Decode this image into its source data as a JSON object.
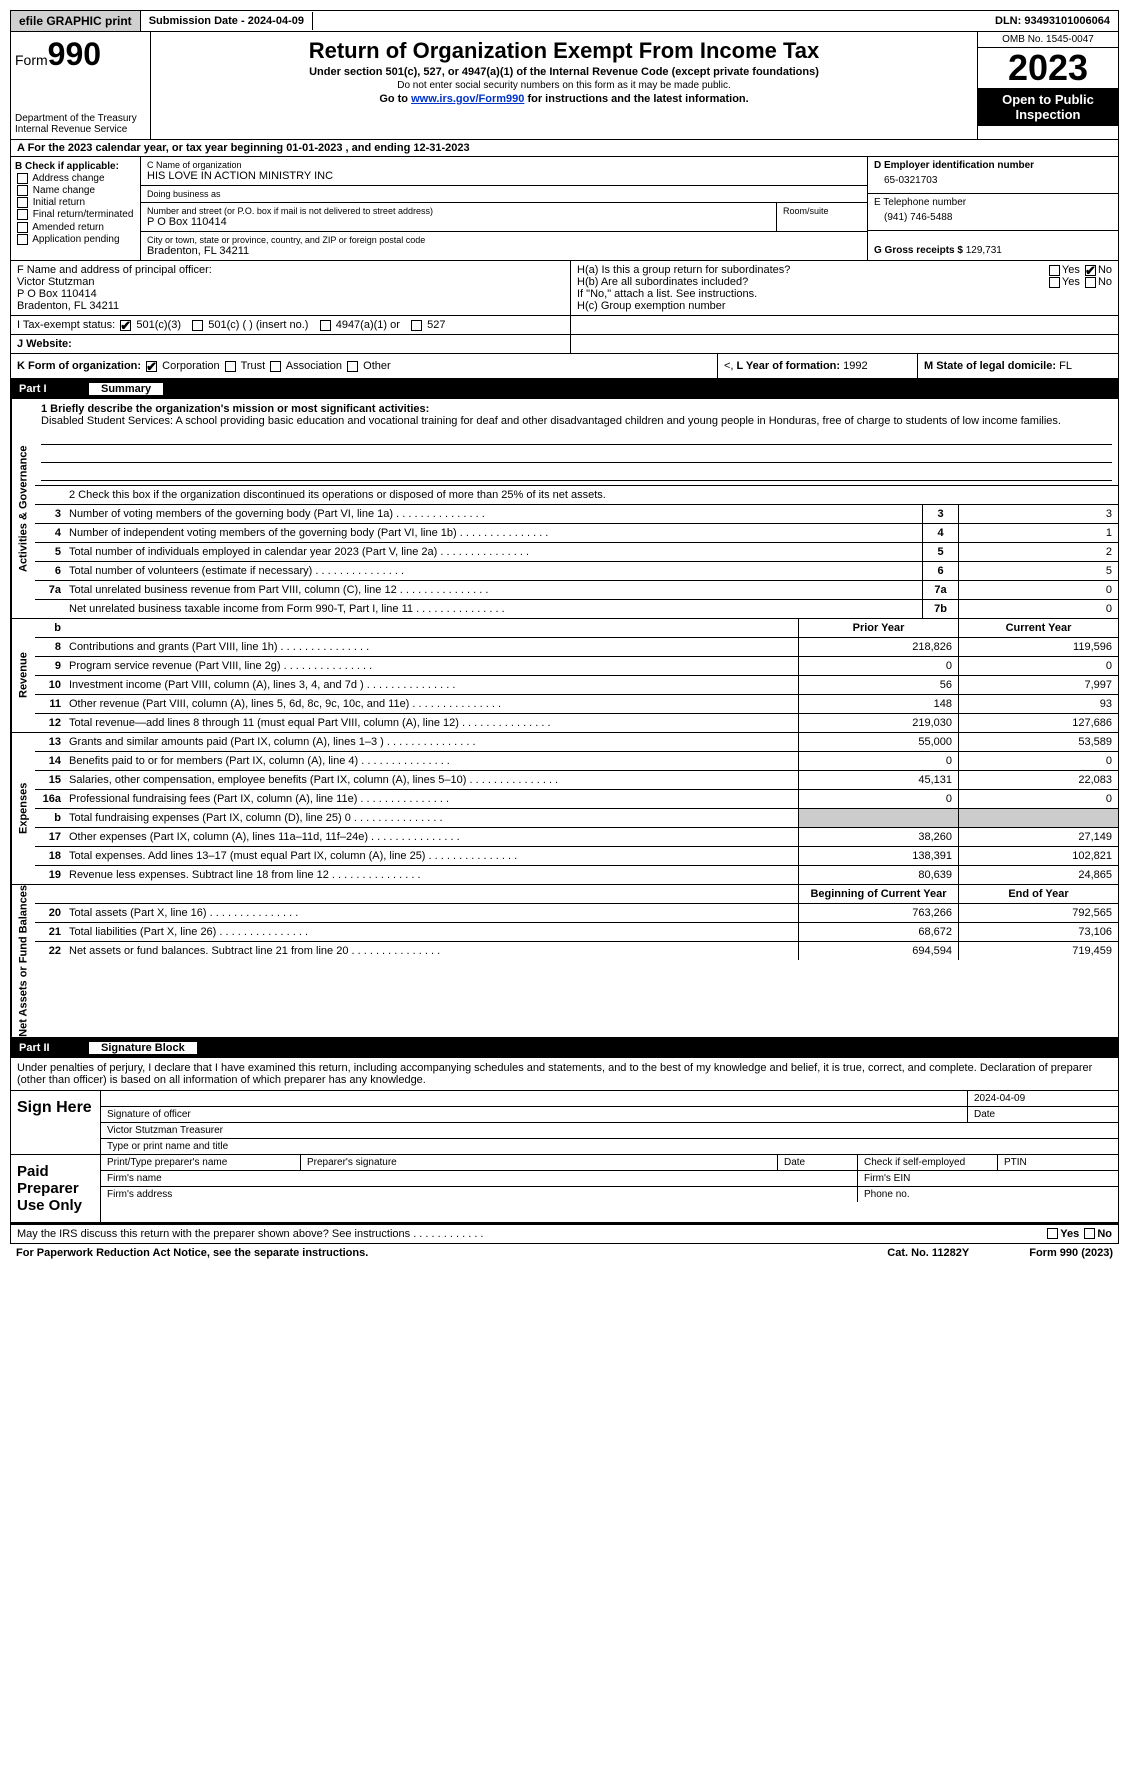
{
  "topbar": {
    "efile": "efile GRAPHIC print",
    "submission": "Submission Date - 2024-04-09",
    "dln": "DLN: 93493101006064"
  },
  "header": {
    "form_label": "Form",
    "form_no": "990",
    "dept": "Department of the Treasury\nInternal Revenue Service",
    "title": "Return of Organization Exempt From Income Tax",
    "sub": "Under section 501(c), 527, or 4947(a)(1) of the Internal Revenue Code (except private foundations)",
    "sub2": "Do not enter social security numbers on this form as it may be made public.",
    "sub3_pre": "Go to ",
    "sub3_link": "www.irs.gov/Form990",
    "sub3_post": " for instructions and the latest information.",
    "omb": "OMB No. 1545-0047",
    "year": "2023",
    "open": "Open to Public Inspection"
  },
  "row_a": "A   For the 2023 calendar year, or tax year beginning 01-01-2023   , and ending 12-31-2023",
  "col_b": {
    "title": "B Check if applicable:",
    "opts": [
      "Address change",
      "Name change",
      "Initial return",
      "Final return/terminated",
      "Amended return",
      "Application pending"
    ]
  },
  "col_c": {
    "name_label": "C Name of organization",
    "name": "HIS LOVE IN ACTION MINISTRY INC",
    "dba_label": "Doing business as",
    "dba": "",
    "street_label": "Number and street (or P.O. box if mail is not delivered to street address)",
    "street": "P O Box 110414",
    "room_label": "Room/suite",
    "city_label": "City or town, state or province, country, and ZIP or foreign postal code",
    "city": "Bradenton, FL  34211"
  },
  "col_d": {
    "ein_label": "D Employer identification number",
    "ein": "65-0321703",
    "phone_label": "E Telephone number",
    "phone": "(941) 746-5488",
    "gross_label": "G Gross receipts $",
    "gross": "129,731"
  },
  "row_f": {
    "label": "F  Name and address of principal officer:",
    "name": "Victor Stutzman",
    "street": "P O Box 110414",
    "city": "Bradenton, FL  34211"
  },
  "row_h": {
    "ha": "H(a)  Is this a group return for subordinates?",
    "hb": "H(b)  Are all subordinates included?",
    "hb_note": "If \"No,\" attach a list. See instructions.",
    "hc": "H(c)  Group exemption number",
    "yes": "Yes",
    "no": "No"
  },
  "row_i": {
    "label": "I   Tax-exempt status:",
    "o1": "501(c)(3)",
    "o2": "501(c) (  ) (insert no.)",
    "o3": "4947(a)(1) or",
    "o4": "527"
  },
  "row_j": {
    "label": "J   Website:",
    "val": ""
  },
  "row_k": {
    "label": "K Form of organization:",
    "o1": "Corporation",
    "o2": "Trust",
    "o3": "Association",
    "o4": "Other"
  },
  "row_l": {
    "label": "L Year of formation:",
    "val": "1992"
  },
  "row_m": {
    "label": "M State of legal domicile:",
    "val": "FL"
  },
  "parts": {
    "p1": "Part I",
    "p1t": "Summary",
    "p2": "Part II",
    "p2t": "Signature Block"
  },
  "summary": {
    "sections": [
      {
        "label": "Activities & Governance"
      },
      {
        "label": "Revenue"
      },
      {
        "label": "Expenses"
      },
      {
        "label": "Net Assets or Fund Balances"
      }
    ],
    "mission_label": "1   Briefly describe the organization's mission or most significant activities:",
    "mission": "Disabled Student Services: A school providing basic education and vocational training for deaf and other disadvantaged children and young people in Honduras, free of charge to students of low income families.",
    "line2": "2   Check this box      if the organization discontinued its operations or disposed of more than 25% of its net assets.",
    "gov_rows": [
      {
        "n": "3",
        "d": "Number of voting members of the governing body (Part VI, line 1a)",
        "k": "3",
        "v": "3"
      },
      {
        "n": "4",
        "d": "Number of independent voting members of the governing body (Part VI, line 1b)",
        "k": "4",
        "v": "1"
      },
      {
        "n": "5",
        "d": "Total number of individuals employed in calendar year 2023 (Part V, line 2a)",
        "k": "5",
        "v": "2"
      },
      {
        "n": "6",
        "d": "Total number of volunteers (estimate if necessary)",
        "k": "6",
        "v": "5"
      },
      {
        "n": "7a",
        "d": "Total unrelated business revenue from Part VIII, column (C), line 12",
        "k": "7a",
        "v": "0"
      },
      {
        "n": "",
        "d": "Net unrelated business taxable income from Form 990-T, Part I, line 11",
        "k": "7b",
        "v": "0"
      }
    ],
    "col_hdr_b": "b",
    "col_hdr_prior": "Prior Year",
    "col_hdr_current": "Current Year",
    "rev_rows": [
      {
        "n": "8",
        "d": "Contributions and grants (Part VIII, line 1h)",
        "p": "218,826",
        "c": "119,596"
      },
      {
        "n": "9",
        "d": "Program service revenue (Part VIII, line 2g)",
        "p": "0",
        "c": "0"
      },
      {
        "n": "10",
        "d": "Investment income (Part VIII, column (A), lines 3, 4, and 7d )",
        "p": "56",
        "c": "7,997"
      },
      {
        "n": "11",
        "d": "Other revenue (Part VIII, column (A), lines 5, 6d, 8c, 9c, 10c, and 11e)",
        "p": "148",
        "c": "93"
      },
      {
        "n": "12",
        "d": "Total revenue—add lines 8 through 11 (must equal Part VIII, column (A), line 12)",
        "p": "219,030",
        "c": "127,686"
      }
    ],
    "exp_rows": [
      {
        "n": "13",
        "d": "Grants and similar amounts paid (Part IX, column (A), lines 1–3 )",
        "p": "55,000",
        "c": "53,589"
      },
      {
        "n": "14",
        "d": "Benefits paid to or for members (Part IX, column (A), line 4)",
        "p": "0",
        "c": "0"
      },
      {
        "n": "15",
        "d": "Salaries, other compensation, employee benefits (Part IX, column (A), lines 5–10)",
        "p": "45,131",
        "c": "22,083"
      },
      {
        "n": "16a",
        "d": "Professional fundraising fees (Part IX, column (A), line 11e)",
        "p": "0",
        "c": "0"
      },
      {
        "n": "b",
        "d": "Total fundraising expenses (Part IX, column (D), line 25) 0",
        "p": "",
        "c": "",
        "grey": true
      },
      {
        "n": "17",
        "d": "Other expenses (Part IX, column (A), lines 11a–11d, 11f–24e)",
        "p": "38,260",
        "c": "27,149"
      },
      {
        "n": "18",
        "d": "Total expenses. Add lines 13–17 (must equal Part IX, column (A), line 25)",
        "p": "138,391",
        "c": "102,821"
      },
      {
        "n": "19",
        "d": "Revenue less expenses. Subtract line 18 from line 12",
        "p": "80,639",
        "c": "24,865"
      }
    ],
    "na_hdr_beg": "Beginning of Current Year",
    "na_hdr_end": "End of Year",
    "na_rows": [
      {
        "n": "20",
        "d": "Total assets (Part X, line 16)",
        "p": "763,266",
        "c": "792,565"
      },
      {
        "n": "21",
        "d": "Total liabilities (Part X, line 26)",
        "p": "68,672",
        "c": "73,106"
      },
      {
        "n": "22",
        "d": "Net assets or fund balances. Subtract line 21 from line 20",
        "p": "694,594",
        "c": "719,459"
      }
    ]
  },
  "signature": {
    "decl": "Under penalties of perjury, I declare that I have examined this return, including accompanying schedules and statements, and to the best of my knowledge and belief, it is true, correct, and complete. Declaration of preparer (other than officer) is based on all information of which preparer has any knowledge.",
    "sign_here": "Sign Here",
    "date": "2024-04-09",
    "sig_officer_lbl": "Signature of officer",
    "officer_name": "Victor Stutzman  Treasurer",
    "type_lbl": "Type or print name and title",
    "date_lbl": "Date",
    "paid": "Paid Preparer Use Only",
    "p_name_lbl": "Print/Type preparer's name",
    "p_sig_lbl": "Preparer's signature",
    "p_date_lbl": "Date",
    "p_check_lbl": "Check       if self-employed",
    "ptin_lbl": "PTIN",
    "firm_name_lbl": "Firm's name",
    "firm_ein_lbl": "Firm's EIN",
    "firm_addr_lbl": "Firm's address",
    "phone_lbl": "Phone no."
  },
  "footer": {
    "discuss": "May the IRS discuss this return with the preparer shown above? See instructions .   .   .   .   .   .   .   .   .   .   .   .",
    "yes": "Yes",
    "no": "No",
    "paperwork": "For Paperwork Reduction Act Notice, see the separate instructions.",
    "cat": "Cat. No. 11282Y",
    "form": "Form 990 (2023)"
  }
}
